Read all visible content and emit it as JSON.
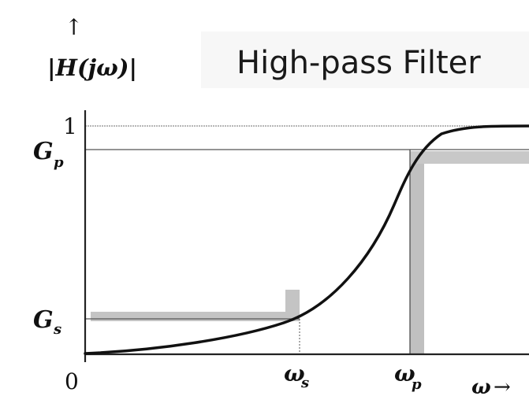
{
  "title": "High-pass Filter",
  "y_axis": {
    "label": "|H(jω)|",
    "arrow": "↑"
  },
  "x_axis": {
    "label": "ω",
    "arrow": "→"
  },
  "y_ticks": {
    "one": "1",
    "gp": "G",
    "gp_sub": "p",
    "gs": "G",
    "gs_sub": "s",
    "zero": "0"
  },
  "x_ticks": {
    "ws": "ω",
    "ws_sub": "s",
    "wp": "ω",
    "wp_sub": "p"
  },
  "colors": {
    "curve": "#111111",
    "axis": "#222222",
    "shade": "#bdbdbd",
    "guide": "#555555"
  }
}
